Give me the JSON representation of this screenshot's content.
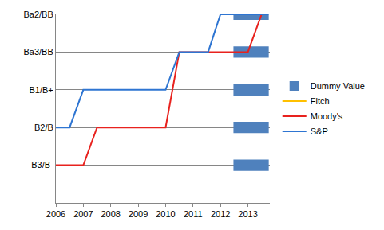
{
  "chart_data": {
    "type": "line",
    "xlim": [
      2006,
      2013.8
    ],
    "xticks": [
      2006,
      2007,
      2008,
      2009,
      2010,
      2011,
      2012,
      2013
    ],
    "ylim": [
      0,
      5
    ],
    "yticks": [
      {
        "value": 1,
        "label": "B3/B-"
      },
      {
        "value": 2,
        "label": "B2/B"
      },
      {
        "value": 3,
        "label": "B1/B+"
      },
      {
        "value": 4,
        "label": "Ba3/BB"
      },
      {
        "value": 5,
        "label": "Ba2/BB"
      }
    ],
    "grid": true,
    "legend": "right",
    "series": [
      {
        "name": "Dummy Value",
        "type": "bar",
        "orientation": "horizontal",
        "color": "#4f81bd",
        "values": [
          1,
          2,
          3,
          4,
          5
        ]
      },
      {
        "name": "Fitch",
        "type": "line",
        "color": "#ffc000",
        "x": [
          2013.0,
          2013.5
        ],
        "values": [
          5,
          5
        ]
      },
      {
        "name": "Moody's",
        "type": "line",
        "color": "#e8221e",
        "x": [
          2006.0,
          2007.0,
          2007.5,
          2010.0,
          2010.5,
          2013.0,
          2013.5
        ],
        "values": [
          1,
          1,
          2,
          2,
          4,
          4,
          5
        ]
      },
      {
        "name": "S&P",
        "type": "line",
        "color": "#2e75d2",
        "x": [
          2006.0,
          2006.5,
          2007.0,
          2010.0,
          2010.5,
          2011.55,
          2012.0,
          2013.75
        ],
        "values": [
          2,
          2,
          3,
          3,
          4,
          4,
          5,
          5
        ]
      }
    ]
  }
}
